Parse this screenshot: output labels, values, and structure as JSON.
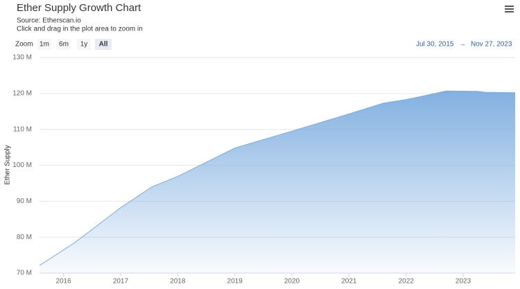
{
  "chart_data": {
    "type": "area",
    "title": "Ether Supply Growth Chart",
    "subtitle": [
      "Source: Etherscan.io",
      "Click and drag in the plot area to zoom in"
    ],
    "y_label": "Ether Supply",
    "range_selector": {
      "zoom_label": "Zoom",
      "buttons": [
        "1m",
        "6m",
        "1y",
        "All"
      ],
      "selected": 3,
      "from": "Jul 30, 2015",
      "arrow": "→",
      "to": "Nov 27, 2023"
    },
    "x": [
      2015.58,
      2016.2,
      2017.0,
      2017.55,
      2018.0,
      2019.0,
      2020.0,
      2021.0,
      2021.6,
      2022.0,
      2022.45,
      2022.7,
      2023.25,
      2023.4,
      2023.91
    ],
    "series": [
      {
        "name": "Ether Supply",
        "color": "#7cacdf",
        "values": [
          72.1,
          78.5,
          88.2,
          94.0,
          96.9,
          104.8,
          109.5,
          114.3,
          117.3,
          118.3,
          119.8,
          120.7,
          120.6,
          120.3,
          120.2
        ]
      }
    ],
    "xlim": [
      2015.58,
      2023.91
    ],
    "xticks": [
      2016,
      2017,
      2018,
      2019,
      2020,
      2021,
      2022,
      2023
    ],
    "ylim": [
      70,
      130
    ],
    "yticks": [
      {
        "value": 70,
        "label": "70 M"
      },
      {
        "value": 80,
        "label": "80 M"
      },
      {
        "value": 90,
        "label": "90 M"
      },
      {
        "value": 100,
        "label": "100 M"
      },
      {
        "value": 110,
        "label": "110 M"
      },
      {
        "value": 120,
        "label": "120 M"
      },
      {
        "value": 130,
        "label": "130 M"
      }
    ],
    "grid": true
  }
}
